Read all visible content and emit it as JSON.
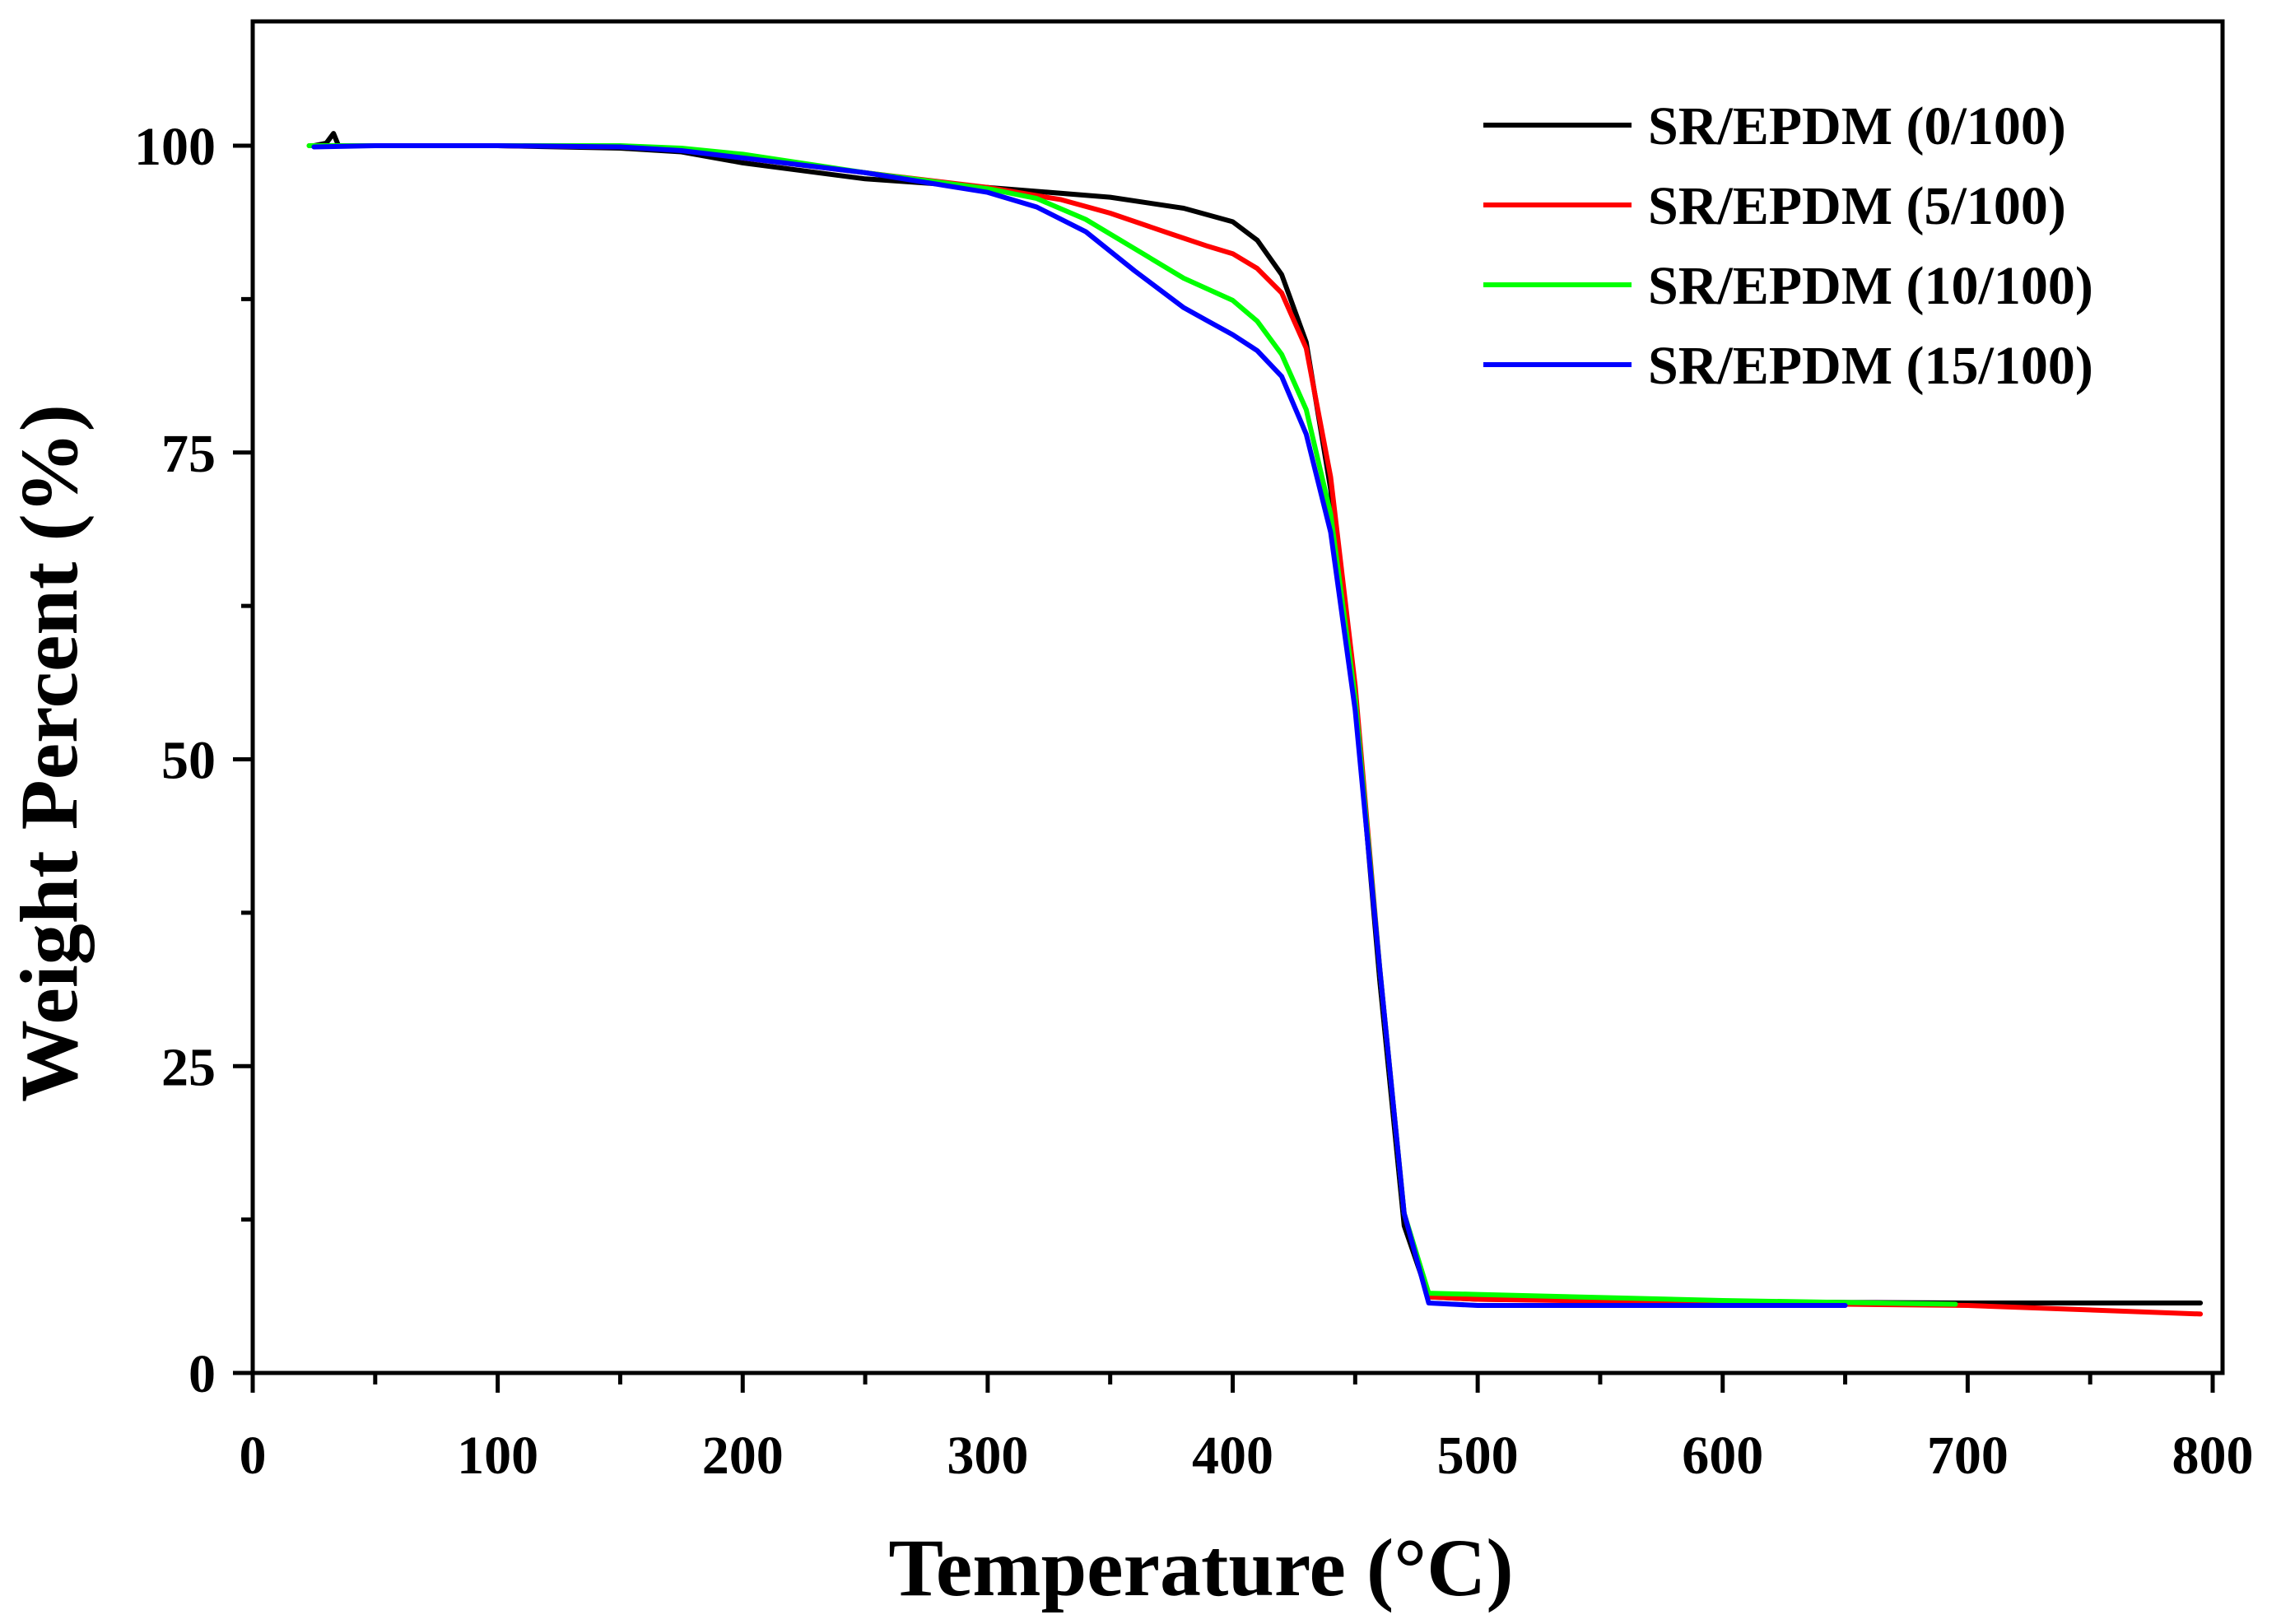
{
  "chart_data": {
    "type": "line",
    "title": "",
    "xlabel": "Temperature (°C)",
    "ylabel": "Weight Percent (%)",
    "xlim": [
      0,
      800
    ],
    "ylim": [
      0,
      110
    ],
    "xticks": [
      "0",
      "100",
      "200",
      "300",
      "400",
      "500",
      "600",
      "700",
      "800"
    ],
    "yticks": [
      "0",
      "25",
      "50",
      "75",
      "100"
    ],
    "grid": false,
    "legend_position": "top-right",
    "series": [
      {
        "name": "SR/EPDM (0/100)",
        "color": "#000000",
        "x": [
          25,
          30,
          33,
          35,
          50,
          100,
          150,
          175,
          200,
          250,
          300,
          350,
          380,
          400,
          410,
          420,
          430,
          440,
          450,
          460,
          470,
          480,
          500,
          600,
          700,
          795
        ],
        "y": [
          100,
          100.2,
          101,
          100,
          100,
          100,
          99.8,
          99.5,
          98.6,
          97.3,
          96.6,
          95.8,
          94.9,
          93.8,
          92.3,
          89.5,
          84,
          72,
          55,
          32,
          12,
          6.2,
          6,
          5.8,
          5.7,
          5.7
        ]
      },
      {
        "name": "SR/EPDM (5/100)",
        "color": "#ff0000",
        "x": [
          23,
          50,
          100,
          150,
          175,
          200,
          250,
          300,
          330,
          350,
          375,
          390,
          400,
          410,
          420,
          430,
          440,
          450,
          460,
          470,
          480,
          500,
          600,
          700,
          795
        ],
        "y": [
          100,
          100,
          100,
          99.9,
          99.7,
          99,
          97.8,
          96.6,
          95.6,
          94.5,
          92.8,
          91.8,
          91.2,
          90,
          88,
          83.5,
          73,
          56,
          33,
          13,
          6.2,
          6,
          5.7,
          5.5,
          4.8
        ]
      },
      {
        "name": "SR/EPDM (10/100)",
        "color": "#00ff00",
        "x": [
          23,
          50,
          100,
          150,
          175,
          200,
          250,
          300,
          320,
          340,
          360,
          380,
          400,
          410,
          420,
          430,
          440,
          450,
          460,
          470,
          480,
          500,
          600,
          695
        ],
        "y": [
          100,
          100,
          100,
          100,
          99.8,
          99.3,
          97.8,
          96.5,
          95.7,
          94,
          91.6,
          89.2,
          87.4,
          85.7,
          83,
          78.5,
          70,
          55,
          33,
          13,
          6.5,
          6.4,
          5.9,
          5.6
        ]
      },
      {
        "name": "SR/EPDM (15/100)",
        "color": "#0000ff",
        "x": [
          25,
          50,
          100,
          150,
          175,
          200,
          250,
          300,
          320,
          340,
          360,
          380,
          390,
          400,
          410,
          420,
          430,
          440,
          450,
          460,
          470,
          480,
          500,
          650
        ],
        "y": [
          99.9,
          100,
          100,
          99.9,
          99.6,
          99,
          97.8,
          96.2,
          95,
          93,
          89.8,
          86.8,
          85.7,
          84.6,
          83.3,
          81.2,
          76.5,
          68.5,
          54,
          33,
          13,
          5.7,
          5.5,
          5.5
        ]
      }
    ]
  }
}
